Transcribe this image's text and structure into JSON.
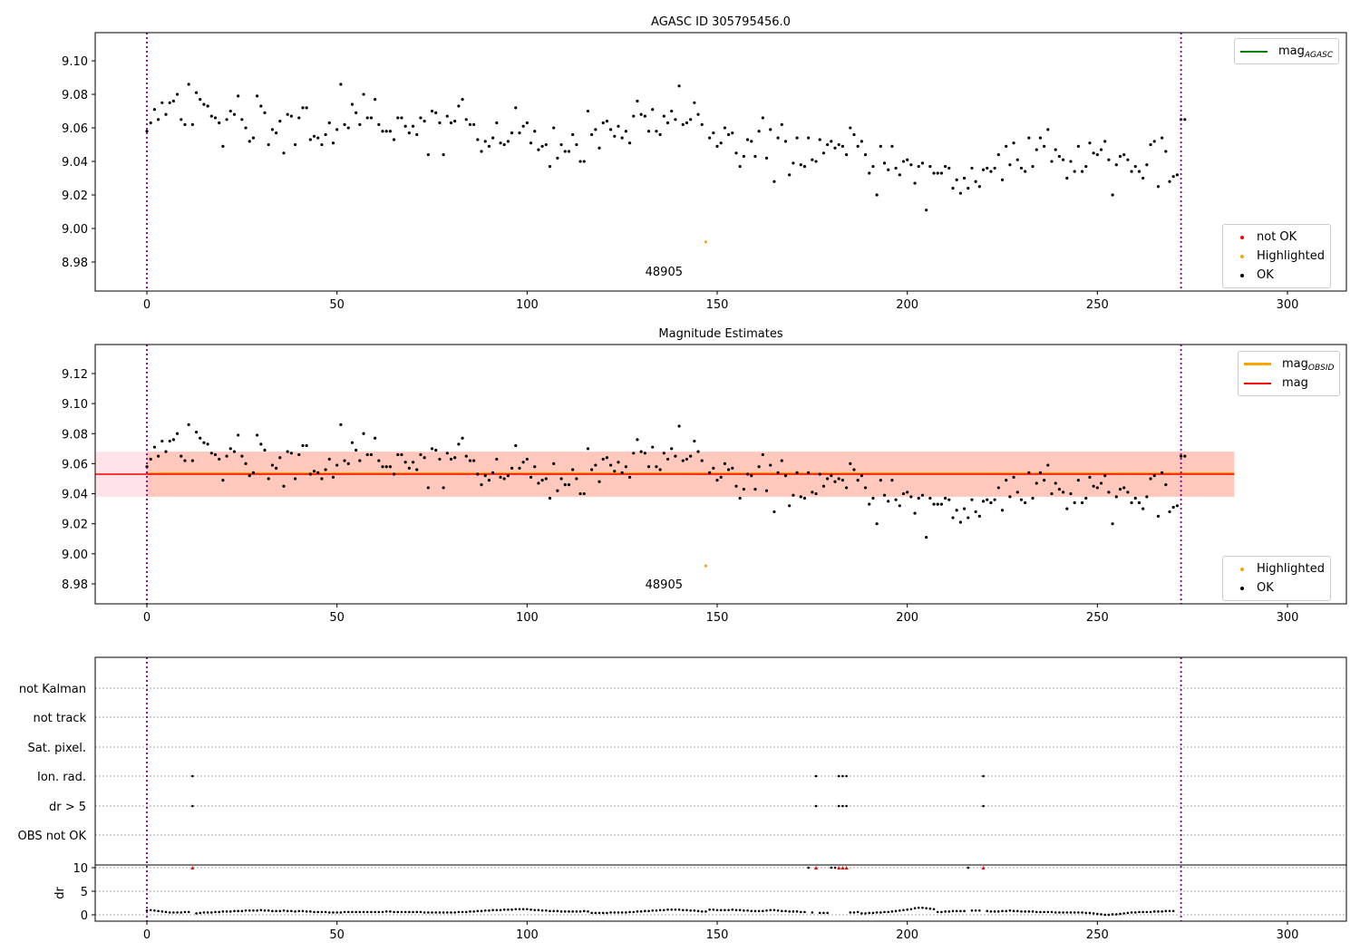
{
  "chart_data": [
    {
      "type": "scatter",
      "title": "AGASC ID 305795456.0",
      "xlim": [
        -13.6,
        315.5
      ],
      "ylim": [
        8.9627,
        9.1168
      ],
      "xticks": [
        0,
        50,
        100,
        150,
        200,
        250,
        300
      ],
      "yticks": [
        "8.98",
        "9.00",
        "9.02",
        "9.04",
        "9.06",
        "9.08",
        "9.10"
      ],
      "annotation": "48905",
      "legend_upper": {
        "mag_label": "mag",
        "mag_sub": "AGASC",
        "color": "#008000"
      },
      "legend_lower": [
        "not OK",
        "Highlighted",
        "OK"
      ]
    },
    {
      "type": "scatter",
      "title": "Magnitude Estimates",
      "xlim": [
        -13.6,
        315.5
      ],
      "ylim": [
        8.9667,
        9.1393
      ],
      "xticks": [
        0,
        50,
        100,
        150,
        200,
        250,
        300
      ],
      "yticks": [
        "8.98",
        "9.00",
        "9.02",
        "9.04",
        "9.06",
        "9.08",
        "9.10",
        "9.12"
      ],
      "annotation": "48905",
      "mag": 9.053,
      "mag_band": [
        9.038,
        9.068
      ],
      "band_x": [
        -13.6,
        286
      ],
      "legend_upper": {
        "obsid_label": "mag",
        "obsid_sub": "OBSID",
        "mag_label": "mag"
      },
      "legend_lower": [
        "Highlighted",
        "OK"
      ]
    },
    {
      "type": "scatter",
      "title": "",
      "categories": [
        "not Kalman",
        "not track",
        "Sat. pixel.",
        "Ion. rad.",
        "dr > 5",
        "OBS not OK"
      ],
      "ylabel": "dr",
      "dr_yticks": [
        "0",
        "5",
        "10"
      ],
      "dr_ylim": [
        -1.35,
        10.58
      ],
      "flags": {
        "Ion. rad.": [
          12,
          176,
          182,
          183,
          184,
          220
        ],
        "dr > 5": [
          12,
          176,
          182,
          183,
          184,
          220
        ]
      },
      "dr_clipped": [
        12,
        176,
        182,
        183,
        184,
        220
      ]
    }
  ],
  "highlighted_index": 147,
  "vlines": [
    0,
    272
  ],
  "mag_values": [
    9.058,
    9.063,
    9.071,
    9.065,
    9.075,
    9.068,
    9.075,
    9.076,
    9.08,
    9.065,
    9.062,
    9.086,
    9.062,
    9.081,
    9.077,
    9.074,
    9.073,
    9.067,
    9.066,
    9.063,
    9.049,
    9.065,
    9.07,
    9.068,
    9.079,
    9.065,
    9.06,
    9.052,
    9.054,
    9.079,
    9.073,
    9.069,
    9.05,
    9.059,
    9.057,
    9.064,
    9.045,
    9.068,
    9.067,
    9.05,
    9.066,
    9.072,
    9.072,
    9.053,
    9.055,
    9.054,
    9.05,
    9.056,
    9.063,
    9.051,
    9.059,
    9.086,
    9.062,
    9.06,
    9.074,
    9.069,
    9.062,
    9.08,
    9.066,
    9.066,
    9.077,
    9.062,
    9.058,
    9.058,
    9.058,
    9.053,
    9.066,
    9.066,
    9.061,
    9.057,
    9.061,
    9.056,
    9.066,
    9.064,
    9.044,
    9.07,
    9.069,
    9.063,
    9.044,
    9.067,
    9.063,
    9.064,
    9.073,
    9.077,
    9.065,
    9.062,
    9.062,
    9.053,
    9.046,
    9.052,
    9.049,
    9.054,
    9.063,
    9.051,
    9.05,
    9.052,
    9.057,
    9.072,
    9.057,
    9.061,
    9.063,
    9.051,
    9.058,
    9.047,
    9.049,
    9.05,
    9.037,
    9.06,
    9.042,
    9.05,
    9.046,
    9.046,
    9.056,
    9.05,
    9.04,
    9.04,
    9.07,
    9.056,
    9.059,
    9.048,
    9.063,
    9.064,
    9.059,
    9.055,
    9.061,
    9.054,
    9.058,
    9.051,
    9.067,
    9.076,
    9.068,
    9.067,
    9.058,
    9.071,
    9.058,
    9.056,
    9.067,
    9.063,
    9.07,
    9.065,
    9.085,
    9.062,
    9.063,
    9.065,
    9.075,
    9.068,
    9.062,
    8.992,
    9.054,
    9.057,
    9.049,
    9.051,
    9.06,
    9.056,
    9.057,
    9.045,
    9.037,
    9.043,
    9.053,
    9.052,
    9.043,
    9.058,
    9.066,
    9.042,
    9.059,
    9.028,
    9.054,
    9.062,
    9.052,
    9.032,
    9.039,
    9.054,
    9.038,
    9.037,
    9.054,
    9.041,
    9.04,
    9.053,
    9.045,
    9.05,
    9.052,
    9.048,
    9.05,
    9.049,
    9.044,
    9.06,
    9.056,
    9.049,
    9.052,
    9.044,
    9.033,
    9.037,
    9.02,
    9.049,
    9.039,
    9.035,
    9.049,
    9.036,
    9.032,
    9.04,
    9.041,
    9.038,
    9.027,
    9.037,
    9.039,
    9.011,
    9.037,
    9.033,
    9.033,
    9.033,
    9.037,
    9.036,
    9.024,
    9.029,
    9.021,
    9.03,
    9.024,
    9.036,
    9.028,
    9.025,
    9.035,
    9.036,
    9.034,
    9.036,
    9.044,
    9.029,
    9.049,
    9.038,
    9.051,
    9.041,
    9.036,
    9.034,
    9.054,
    9.037,
    9.047,
    9.054,
    9.049,
    9.059,
    9.04,
    9.047,
    9.043,
    9.041,
    9.03,
    9.04,
    9.034,
    9.049,
    9.034,
    9.037,
    9.051,
    9.045,
    9.044,
    9.047,
    9.052,
    9.041,
    9.02,
    9.038,
    9.043,
    9.044,
    9.041,
    9.034,
    9.037,
    9.034,
    9.03,
    9.038,
    9.05,
    9.052,
    9.025,
    9.054,
    9.046,
    9.028,
    9.031,
    9.032,
    9.065,
    9.065
  ],
  "dr_values": [
    0.9,
    1.0,
    0.9,
    0.8,
    0.7,
    0.6,
    0.5,
    0.5,
    0.5,
    0.5,
    0.6,
    0.6,
    10,
    0.3,
    0.4,
    0.5,
    0.5,
    0.5,
    0.6,
    0.6,
    0.7,
    0.7,
    0.7,
    0.8,
    0.8,
    0.8,
    0.9,
    0.9,
    0.9,
    0.9,
    1.0,
    0.9,
    0.9,
    0.8,
    0.8,
    0.8,
    0.9,
    0.8,
    0.8,
    0.7,
    0.8,
    0.8,
    0.7,
    0.7,
    0.6,
    0.6,
    0.6,
    0.6,
    0.5,
    0.5,
    0.5,
    0.5,
    0.6,
    0.6,
    0.6,
    0.6,
    0.6,
    0.6,
    0.6,
    0.6,
    0.6,
    0.6,
    0.6,
    0.7,
    0.7,
    0.6,
    0.6,
    0.6,
    0.6,
    0.6,
    0.6,
    0.6,
    0.6,
    0.5,
    0.5,
    0.5,
    0.5,
    0.5,
    0.5,
    0.5,
    0.5,
    0.5,
    0.6,
    0.6,
    0.6,
    0.7,
    0.7,
    0.8,
    0.8,
    0.9,
    0.9,
    1.0,
    1.0,
    1.0,
    1.1,
    1.1,
    1.1,
    1.2,
    1.2,
    1.2,
    1.2,
    1.1,
    1.0,
    1.0,
    0.9,
    0.9,
    0.8,
    0.8,
    0.8,
    0.7,
    0.7,
    0.7,
    0.7,
    0.7,
    0.7,
    0.8,
    0.7,
    0.4,
    0.4,
    0.4,
    0.4,
    0.4,
    0.5,
    0.5,
    0.5,
    0.5,
    0.5,
    0.6,
    0.6,
    0.7,
    0.7,
    0.8,
    0.8,
    0.9,
    0.9,
    1.0,
    1.0,
    1.1,
    1.1,
    1.1,
    1.1,
    1.0,
    1.0,
    0.9,
    0.9,
    0.8,
    0.7,
    0.7,
    1.1,
    1.1,
    1.0,
    1.0,
    1.0,
    1.0,
    1.1,
    1.0,
    1.0,
    0.9,
    0.9,
    0.8,
    0.8,
    0.8,
    0.8,
    0.9,
    1.0,
    1.0,
    0.9,
    0.8,
    0.8,
    0.7,
    0.7,
    0.7,
    0.6,
    0.6,
    10,
    0.5,
    0.4,
    0.4,
    0.4,
    0.4,
    10,
    10,
    10,
    0.4,
    0.4,
    0.5,
    0.5,
    0.6,
    0.3,
    0.3,
    0.4,
    0.4,
    0.5,
    0.5,
    0.6,
    0.6,
    0.7,
    0.8,
    0.9,
    1.0,
    1.1,
    1.2,
    1.4,
    1.5,
    1.5,
    1.4,
    1.3,
    1.2,
    0.6,
    0.6,
    0.7,
    0.7,
    0.8,
    0.8,
    0.8,
    0.8,
    10,
    0.9,
    0.9,
    0.9,
    0.8,
    0.8,
    0.7,
    0.7,
    0.7,
    0.8,
    0.8,
    0.9,
    0.8,
    0.8,
    0.7,
    0.7,
    0.7,
    0.7,
    0.6,
    0.6,
    0.6,
    0.6,
    0.6,
    0.5,
    0.5,
    0.5,
    0.5,
    0.5,
    0.5,
    0.5,
    0.5,
    0.4,
    0.4,
    0.3,
    0.2,
    0.1,
    0.0,
    0.0,
    0.1,
    0.1,
    0.2,
    0.3,
    0.4,
    0.5,
    0.5,
    0.6,
    0.6,
    0.6,
    0.6,
    0.7,
    0.7,
    0.7,
    0.8,
    0.8,
    0.8
  ],
  "colors": {
    "ok": "#000000",
    "highlighted": "#ffa500",
    "not_ok": "#ff0000",
    "vline": "#800080",
    "mag": "#ff0000",
    "mag_obsid": "#ffa500",
    "band": "#ffc0cb",
    "band_obsid": "#ffa07a"
  }
}
